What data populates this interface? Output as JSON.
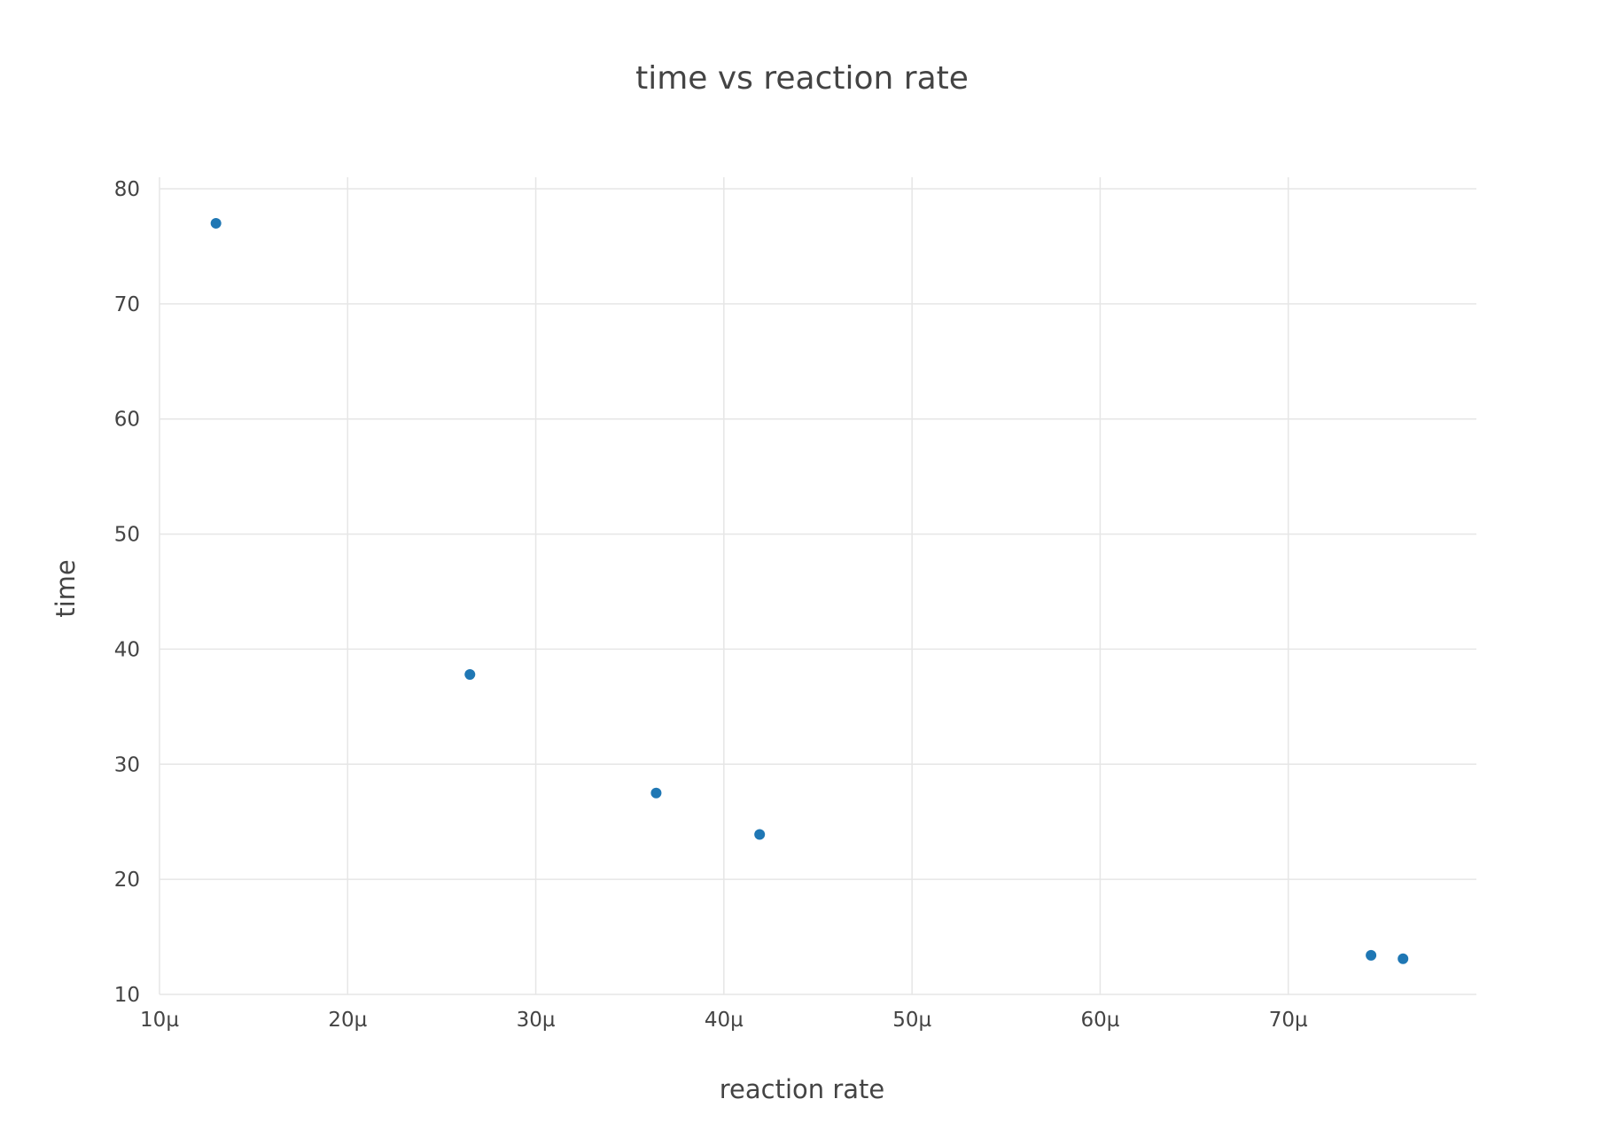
{
  "chart_data": {
    "type": "scatter",
    "title": "time vs reaction rate",
    "xlabel": "reaction rate",
    "ylabel": "time",
    "x_unit_suffix": "µ",
    "x_scale": 1e-06,
    "xlim": [
      10,
      80
    ],
    "ylim": [
      10,
      81
    ],
    "x_ticks": [
      10,
      20,
      30,
      40,
      50,
      60,
      70
    ],
    "x_tick_labels": [
      "10µ",
      "20µ",
      "30µ",
      "40µ",
      "50µ",
      "60µ",
      "70µ"
    ],
    "y_ticks": [
      10,
      20,
      30,
      40,
      50,
      60,
      70,
      80
    ],
    "y_tick_labels": [
      "10",
      "20",
      "30",
      "40",
      "50",
      "60",
      "70",
      "80"
    ],
    "grid": true,
    "legend": "none",
    "marker_color": "#1f77b4",
    "series": [
      {
        "x": [
          13,
          26.5,
          36.4,
          41.9,
          74.4,
          76.1
        ],
        "y": [
          77.0,
          37.8,
          27.5,
          23.9,
          13.4,
          13.1
        ]
      }
    ]
  }
}
